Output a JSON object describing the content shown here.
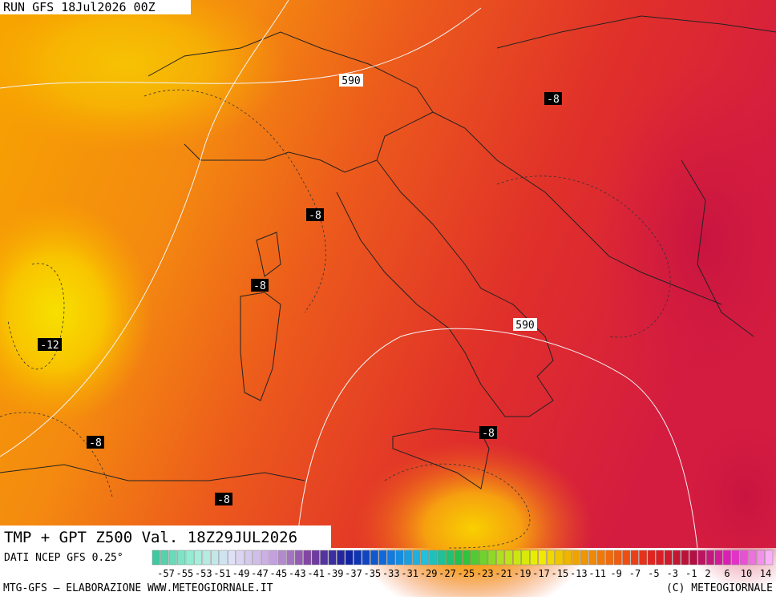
{
  "header": {
    "run": "RUN GFS 18Jul2026 00Z"
  },
  "map": {
    "labels": [
      "590",
      "-8",
      "-8",
      "-8",
      "-12",
      "590",
      "-8",
      "-8",
      "-8"
    ]
  },
  "footer": {
    "title": "TMP + GPT Z500 Val. 18Z29JUL2026",
    "source": "DATI NCEP GFS 0.25°",
    "credit": "MTG-GFS — ELABORAZIONE WWW.METEOGIORNALE.IT",
    "copyright": "(C) METEOGIORNALE"
  },
  "legend": {
    "labels": [
      "-57",
      "-55",
      "-53",
      "-51",
      "-49",
      "-47",
      "-45",
      "-43",
      "-41",
      "-39",
      "-37",
      "-35",
      "-33",
      "-31",
      "-29",
      "-27",
      "-25",
      "-23",
      "-21",
      "-19",
      "-17",
      "-15",
      "-13",
      "-11",
      "-9",
      "-7",
      "-5",
      "-3",
      "-1",
      "2",
      "6",
      "10",
      "14"
    ]
  }
}
